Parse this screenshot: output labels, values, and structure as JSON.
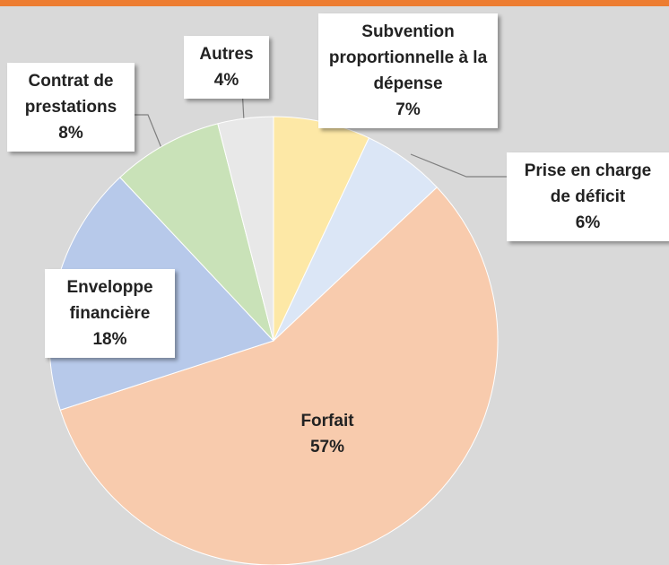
{
  "chart_data": {
    "type": "pie",
    "categories": [
      "Subvention proportionnelle à la dépense",
      "Prise en charge de déficit",
      "Forfait",
      "Enveloppe financière",
      "Contrat de prestations",
      "Autres"
    ],
    "values": [
      7,
      6,
      57,
      18,
      8,
      4
    ],
    "value_labels": [
      "7%",
      "6%",
      "57%",
      "18%",
      "8%",
      "4%"
    ],
    "colors": [
      "#fde8a6",
      "#dbe6f6",
      "#f8cbad",
      "#b7c9ea",
      "#c9e2b8",
      "#e8e8e8"
    ]
  }
}
